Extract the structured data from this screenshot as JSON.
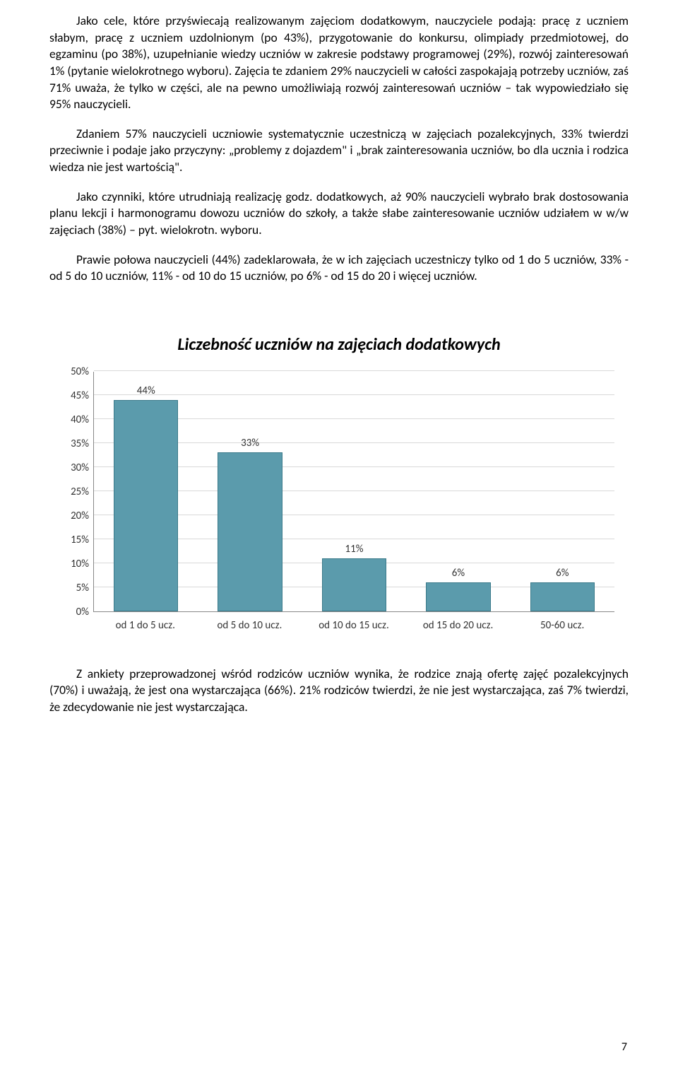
{
  "paragraphs": {
    "p1": "Jako cele, które przyświecają realizowanym zajęciom dodatkowym, nauczyciele podają: pracę z uczniem słabym, pracę z uczniem uzdolnionym (po 43%), przygotowanie do konkursu, olimpiady przedmiotowej, do egzaminu (po 38%), uzupełnianie wiedzy uczniów w zakresie podstawy programowej (29%), rozwój zainteresowań 1% (pytanie wielokrotnego wyboru). Zajęcia te zdaniem 29% nauczycieli w całości zaspokajają potrzeby uczniów, zaś 71% uważa, że tylko w części, ale na pewno umożliwiają rozwój zainteresowań uczniów – tak wypowiedziało się 95% nauczycieli.",
    "p2": "Zdaniem 57% nauczycieli uczniowie systematycznie uczestniczą w zajęciach pozalekcyjnych, 33% twierdzi przeciwnie i podaje jako przyczyny: „problemy z dojazdem\" i „brak zainteresowania uczniów, bo dla ucznia i rodzica wiedza nie jest wartością\".",
    "p3": "Jako czynniki, które utrudniają realizację godz. dodatkowych, aż 90% nauczycieli wybrało brak dostosowania planu lekcji i harmonogramu dowozu uczniów do szkoły, a także słabe zainteresowanie uczniów udziałem w w/w zajęciach (38%) – pyt. wielokrotn. wyboru.",
    "p4": "Prawie połowa nauczycieli (44%) zadeklarowała, że w ich zajęciach  uczestniczy  tylko od 1 do 5 uczniów, 33% - od 5 do 10 uczniów, 11% - od 10 do 15 uczniów, po 6% - od 15 do 20 i więcej uczniów.",
    "p5": "Z ankiety przeprowadzonej wśród rodziców uczniów wynika, że rodzice znają ofertę zajęć pozalekcyjnych (70%) i uważają, że jest ona wystarczająca (66%). 21% rodziców twierdzi, że nie jest wystarczająca, zaś 7% twierdzi, że zdecydowanie nie jest wystarczająca."
  },
  "chart": {
    "type": "bar",
    "title": "Liczebność uczniów na zajęciach dodatkowych",
    "categories": [
      "od 1 do 5 ucz.",
      "od 5 do 10 ucz.",
      "od 10 do 15 ucz.",
      "od 15 do 20 ucz.",
      "50-60 ucz."
    ],
    "values": [
      44,
      33,
      11,
      6,
      6
    ],
    "value_labels": [
      "44%",
      "33%",
      "11%",
      "6%",
      "6%"
    ],
    "ymax": 50,
    "ytick_step": 5,
    "ytick_labels": [
      "0%",
      "5%",
      "10%",
      "15%",
      "20%",
      "25%",
      "30%",
      "35%",
      "40%",
      "45%",
      "50%"
    ],
    "bar_fill": "#5b9bac",
    "bar_border": "#3a7a8a",
    "grid_color": "#d9d9d9",
    "axis_color": "#888888",
    "background_color": "#ffffff",
    "title_fontsize": 24,
    "label_fontsize": 15
  },
  "page_number": "7"
}
